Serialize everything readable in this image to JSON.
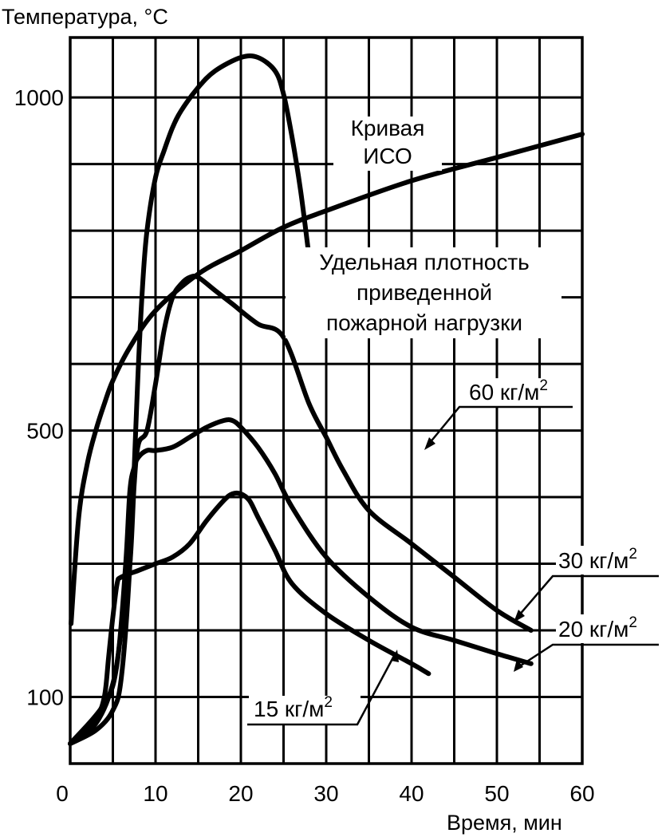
{
  "chart_data": {
    "type": "line",
    "ylabel": "Температура, °C",
    "xlabel": "Время, мин",
    "xlim": [
      0,
      60
    ],
    "ylim": [
      0,
      1090
    ],
    "x_ticks": [
      0,
      10,
      20,
      30,
      40,
      50,
      60
    ],
    "y_ticks": [
      100,
      500,
      1000
    ],
    "grid": true,
    "series": [
      {
        "name": "Кривая ИСО",
        "x": [
          0.1,
          1,
          2,
          3,
          4,
          5,
          7,
          10,
          15,
          20,
          25,
          30,
          40,
          50,
          60
        ],
        "y": [
          210,
          370,
          450,
          500,
          540,
          575,
          625,
          680,
          735,
          770,
          805,
          830,
          875,
          910,
          945
        ]
      },
      {
        "name": "60 кг/м2",
        "x": [
          0,
          3,
          5,
          6,
          7,
          8,
          8.5,
          9,
          10,
          11,
          12,
          13,
          15,
          17,
          20,
          22,
          24,
          25,
          26,
          27,
          28
        ],
        "y": [
          30,
          50,
          80,
          130,
          300,
          600,
          720,
          800,
          880,
          920,
          955,
          980,
          1015,
          1040,
          1060,
          1060,
          1040,
          1005,
          940,
          860,
          760
        ]
      },
      {
        "name": "30 кг/м2",
        "x": [
          0,
          3,
          5,
          6,
          7,
          7.5,
          8,
          9,
          10,
          11,
          12,
          13,
          14,
          15,
          17,
          19,
          22,
          25,
          28,
          30,
          32,
          35,
          40,
          45,
          50,
          54
        ],
        "y": [
          30,
          60,
          120,
          200,
          300,
          420,
          480,
          500,
          570,
          650,
          700,
          720,
          730,
          730,
          710,
          690,
          660,
          640,
          540,
          490,
          440,
          380,
          330,
          280,
          230,
          200
        ]
      },
      {
        "name": "20 кг/м2",
        "x": [
          0,
          4,
          5.5,
          6.5,
          7,
          7.5,
          8,
          9,
          10,
          12,
          14,
          16,
          18,
          19,
          20,
          22,
          24,
          26,
          30,
          35,
          40,
          45,
          50,
          54
        ],
        "y": [
          30,
          90,
          150,
          300,
          410,
          445,
          460,
          470,
          470,
          475,
          490,
          505,
          515,
          515,
          505,
          475,
          435,
          385,
          310,
          250,
          205,
          185,
          165,
          150
        ]
      },
      {
        "name": "15 кг/м2",
        "x": [
          0,
          3,
          4,
          4.5,
          5,
          5.5,
          6,
          8,
          10,
          12,
          14,
          16,
          18,
          19,
          20,
          21,
          22,
          24,
          26,
          30,
          35,
          40,
          42
        ],
        "y": [
          30,
          70,
          100,
          160,
          220,
          270,
          280,
          290,
          300,
          310,
          330,
          365,
          395,
          405,
          405,
          395,
          370,
          320,
          270,
          225,
          185,
          150,
          135
        ]
      }
    ],
    "annotations": [
      {
        "line1": "Кривая",
        "line2": "ИСО"
      },
      {
        "line1": "Удельная плотность",
        "line2": "приведенной",
        "line3": "пожарной нагрузки"
      }
    ],
    "series_labels": [
      {
        "text": "60 кг/м",
        "sup": "2"
      },
      {
        "text": "30 кг/м",
        "sup": "2"
      },
      {
        "text": "20 кг/м",
        "sup": "2"
      },
      {
        "text": "15 кг/м",
        "sup": "2"
      }
    ]
  }
}
